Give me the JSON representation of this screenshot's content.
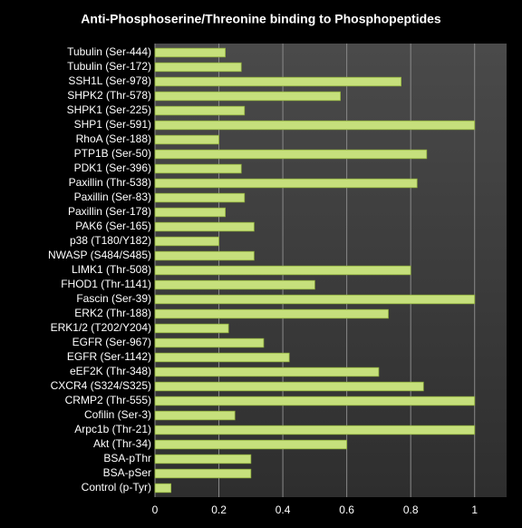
{
  "chart_data": {
    "type": "hbar",
    "title": "Anti-Phosphoserine/Threonine binding to Phosphopeptides",
    "categories": [
      "Tubulin (Ser-444)",
      "Tubulin (Ser-172)",
      "SSH1L (Ser-978)",
      "SHPK2 (Thr-578)",
      "SHPK1 (Ser-225)",
      "SHP1 (Ser-591)",
      "RhoA (Ser-188)",
      "PTP1B (Ser-50)",
      "PDK1 (Ser-396)",
      "Paxillin (Thr-538)",
      "Paxillin (Ser-83)",
      "Paxillin (Ser-178)",
      "PAK6 (Ser-165)",
      "p38 (T180/Y182)",
      "NWASP (S484/S485)",
      "LIMK1 (Thr-508)",
      "FHOD1 (Thr-1141)",
      "Fascin (Ser-39)",
      "ERK2 (Thr-188)",
      "ERK1/2 (T202/Y204)",
      "EGFR (Ser-967)",
      "EGFR (Ser-1142)",
      "eEF2K (Thr-348)",
      "CXCR4 (S324/S325)",
      "CRMP2 (Thr-555)",
      "Cofilin (Ser-3)",
      "Arpc1b (Thr-21)",
      "Akt (Thr-34)",
      "BSA-pThr",
      "BSA-pSer",
      "Control (p-Tyr)"
    ],
    "values": [
      0.22,
      0.27,
      0.77,
      0.58,
      0.28,
      1,
      0.2,
      0.85,
      0.27,
      0.82,
      0.28,
      0.22,
      0.31,
      0.2,
      0.31,
      0.8,
      0.5,
      1,
      0.73,
      0.23,
      0.34,
      0.42,
      0.7,
      0.84,
      1,
      0.25,
      1,
      0.6,
      0.3,
      0.3,
      0.05
    ],
    "color": "#c6e07c",
    "xlim": [
      0,
      1.1
    ],
    "xticks": [
      0,
      0.2,
      0.4,
      0.6,
      0.8,
      1
    ],
    "grid": true
  }
}
